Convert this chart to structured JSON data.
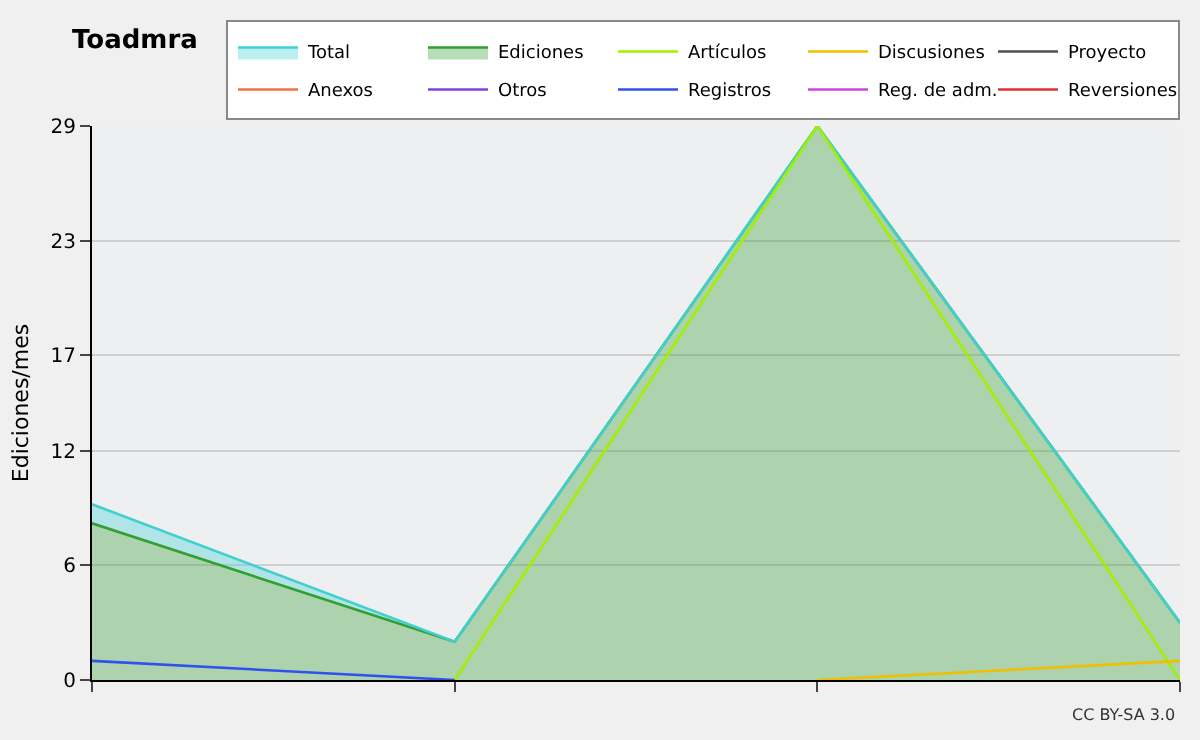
{
  "chart_data": {
    "type": "area",
    "title": "Toadmra",
    "ylabel": "Ediciones/mes",
    "categories": [
      null,
      null,
      null,
      null
    ],
    "ylim": [
      0,
      29
    ],
    "yticks": [
      0,
      6,
      12,
      17,
      23,
      29
    ],
    "grid": "y",
    "legend": "top right",
    "marker": "none",
    "annotations": [
      "CC BY-SA 3.0"
    ],
    "series": [
      {
        "name": "Total",
        "color": "#40d0d0",
        "values": [
          9.2,
          2,
          29,
          3
        ]
      },
      {
        "name": "Ediciones",
        "color": "#30a030",
        "values": [
          8.2,
          2,
          29,
          3
        ]
      },
      {
        "name": "Artículos",
        "type": "line",
        "color": "#a0f000",
        "values": [
          null,
          0,
          29,
          0
        ]
      },
      {
        "name": "Discusiones",
        "type": "line",
        "color": "#f0c000",
        "values": [
          null,
          null,
          0,
          1
        ]
      },
      {
        "name": "Proyecto",
        "type": "line",
        "color": "#505050",
        "values": [
          null,
          null,
          null,
          null
        ]
      },
      {
        "name": "Anexos",
        "type": "line",
        "color": "#f07040",
        "values": [
          null,
          null,
          null,
          null
        ]
      },
      {
        "name": "Otros",
        "type": "line",
        "color": "#8040e0",
        "values": [
          null,
          null,
          null,
          null
        ]
      },
      {
        "name": "Registros",
        "type": "line",
        "color": "#3050f0",
        "values": [
          1,
          0,
          null,
          null
        ]
      },
      {
        "name": "Reg. de adm.",
        "type": "line",
        "color": "#d040e0",
        "values": [
          null,
          null,
          null,
          null
        ]
      },
      {
        "name": "Reversiones",
        "type": "line",
        "color": "#e03030",
        "values": [
          null,
          null,
          null,
          null
        ]
      }
    ]
  }
}
